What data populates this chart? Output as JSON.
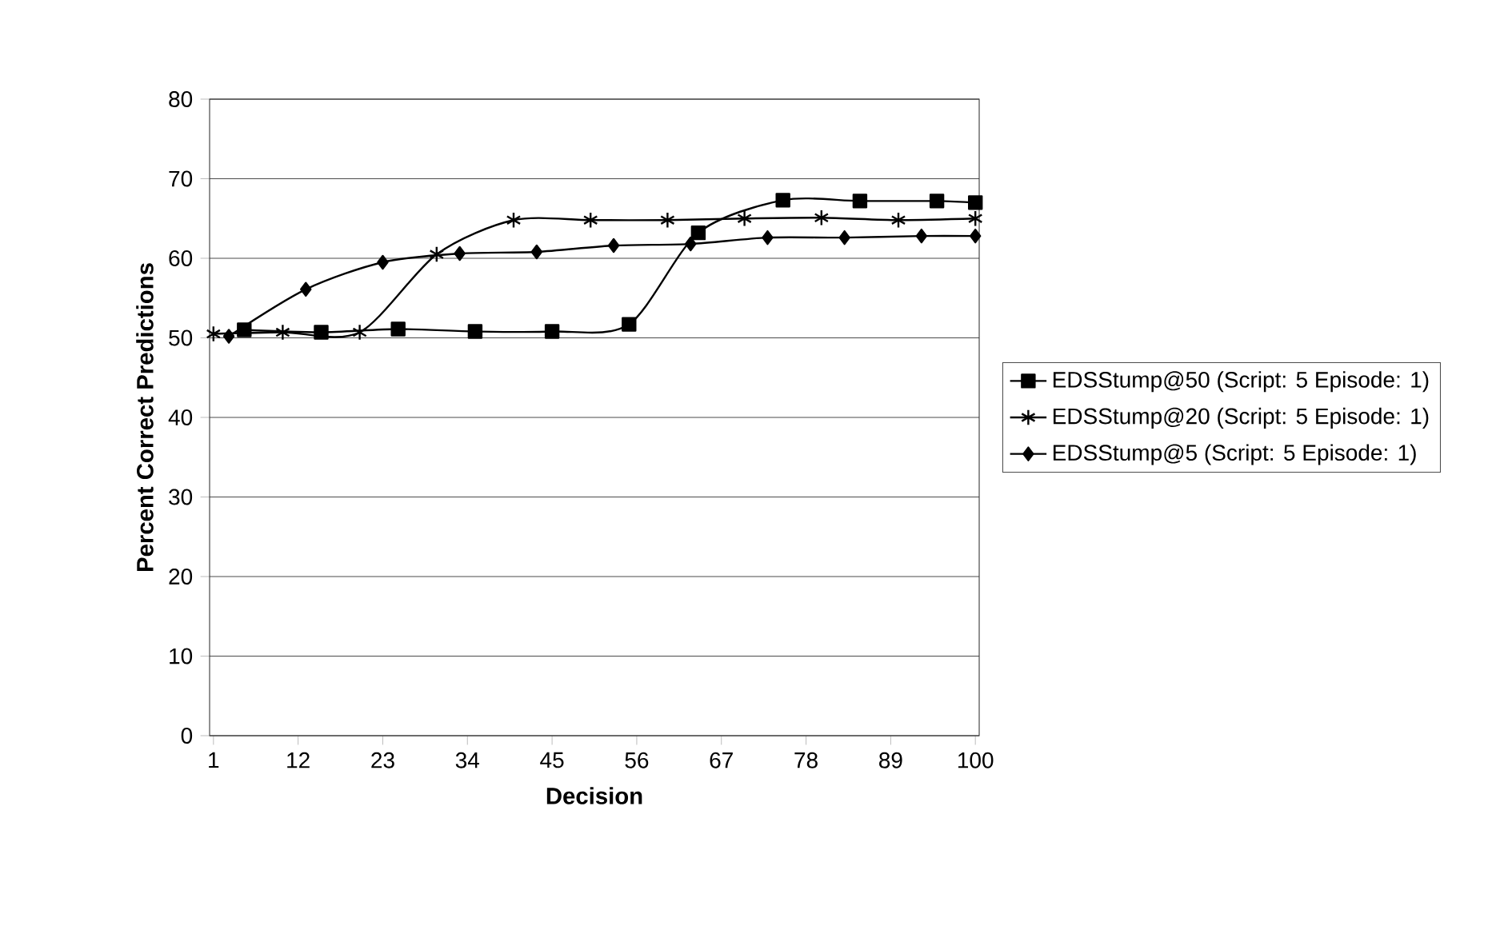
{
  "chart_data": {
    "type": "line",
    "xlabel": "Decision",
    "ylabel": "Percent Correct Predictions",
    "xlim": [
      0.5,
      100.5
    ],
    "xticks": [
      1,
      12,
      23,
      34,
      45,
      56,
      67,
      78,
      89,
      100
    ],
    "ylim": [
      0,
      80
    ],
    "yticks": [
      0,
      10,
      20,
      30,
      40,
      50,
      60,
      70,
      80
    ],
    "grid": "y",
    "legend": "right",
    "series": [
      {
        "name": "EDSStump@50 (Script: 5 Episode: 1)",
        "color": "#000000",
        "marker": "square",
        "x": [
          5,
          15,
          25,
          35,
          45,
          55,
          64,
          75,
          85,
          95,
          100
        ],
        "values": [
          51,
          50.7,
          51.1,
          50.8,
          50.8,
          51.7,
          63.2,
          67.3,
          67.2,
          67.2,
          67
        ]
      },
      {
        "name": "EDSStump@20 (Script: 5 Episode: 1)",
        "color": "#000000",
        "marker": "cross",
        "x": [
          1,
          10,
          20,
          30,
          40,
          50,
          60,
          70,
          80,
          90,
          100
        ],
        "values": [
          50.5,
          50.7,
          50.7,
          60.5,
          64.8,
          64.8,
          64.8,
          65,
          65.1,
          64.8,
          65
        ]
      },
      {
        "name": "EDSStump@5 (Script: 5 Episode: 1)",
        "color": "#000000",
        "marker": "diamond",
        "x": [
          3,
          13,
          23,
          33,
          43,
          53,
          63,
          73,
          83,
          93,
          100
        ],
        "values": [
          50.2,
          56.1,
          59.5,
          60.6,
          60.8,
          61.6,
          61.8,
          62.6,
          62.6,
          62.8,
          62.8
        ]
      }
    ]
  }
}
